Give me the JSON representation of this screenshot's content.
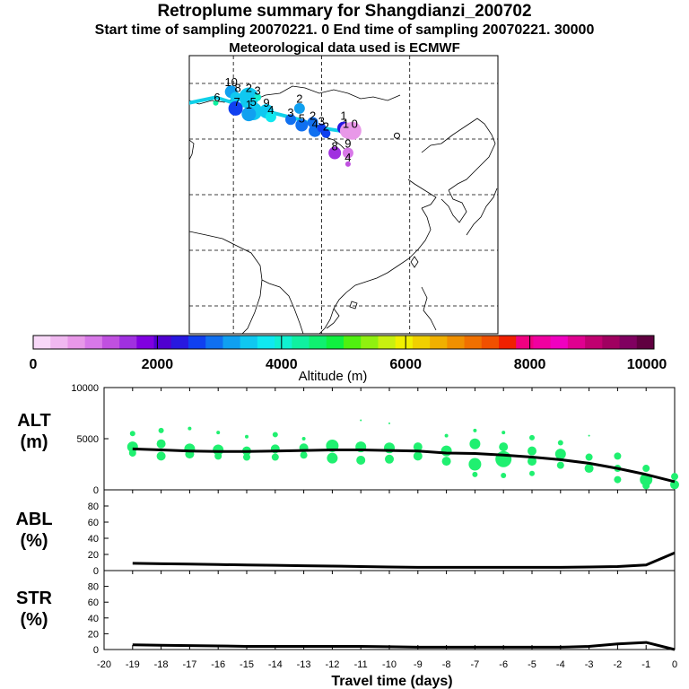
{
  "title": "Retroplume summary for Shangdianzi_200702",
  "subtitle": "Start time of sampling 20070221.    0     End time of sampling 20070221. 30000",
  "met_line": "Meteorological data used is ECMWF",
  "colorbar": {
    "label": "Altitude (m)",
    "ticks": [
      "0",
      "2000",
      "4000",
      "6000",
      "8000",
      "10000"
    ],
    "range": [
      0,
      10000
    ],
    "colors": [
      "#f8d8f8",
      "#f0b8f0",
      "#e898e8",
      "#d878e8",
      "#c050e0",
      "#a030e0",
      "#8000e0",
      "#5000d0",
      "#2818e0",
      "#1040f0",
      "#1070f0",
      "#10a0f0",
      "#10c8f0",
      "#10e8f0",
      "#10f0d0",
      "#10f0a0",
      "#10f070",
      "#10f040",
      "#50f010",
      "#90f010",
      "#c8f010",
      "#f0f000",
      "#f0d000",
      "#f0b000",
      "#f09000",
      "#f07000",
      "#f05000",
      "#f02000",
      "#f00080",
      "#f000a0",
      "#f000c0",
      "#e00090",
      "#c00070",
      "#a00060",
      "#800060",
      "#600040"
    ]
  },
  "map_labels": [
    {
      "text": "10",
      "lon": 79.5,
      "lat": 49.5
    },
    {
      "text": "8",
      "lon": 81.0,
      "lat": 48.5
    },
    {
      "text": "6",
      "lon": 76.3,
      "lat": 46.8
    },
    {
      "text": "7",
      "lon": 80.8,
      "lat": 46.0
    },
    {
      "text": "2",
      "lon": 83.5,
      "lat": 48.5
    },
    {
      "text": "3",
      "lon": 85.5,
      "lat": 48.0
    },
    {
      "text": "5",
      "lon": 84.5,
      "lat": 46.0
    },
    {
      "text": "1",
      "lon": 83.5,
      "lat": 45.5
    },
    {
      "text": "9",
      "lon": 87.5,
      "lat": 45.8
    },
    {
      "text": "4",
      "lon": 88.5,
      "lat": 44.5
    },
    {
      "text": "2",
      "lon": 95.0,
      "lat": 46.5
    },
    {
      "text": "3",
      "lon": 93.0,
      "lat": 44.0
    },
    {
      "text": "5",
      "lon": 95.5,
      "lat": 43.0
    },
    {
      "text": "4",
      "lon": 98.5,
      "lat": 42.0
    },
    {
      "text": "2",
      "lon": 98.0,
      "lat": 43.5
    },
    {
      "text": "3",
      "lon": 100.0,
      "lat": 42.5
    },
    {
      "text": "2",
      "lon": 101.0,
      "lat": 41.5
    },
    {
      "text": "1",
      "lon": 105.0,
      "lat": 43.5
    },
    {
      "text": "1",
      "lon": 105.5,
      "lat": 42.0
    },
    {
      "text": "0",
      "lon": 107.5,
      "lat": 42.0
    },
    {
      "text": "8",
      "lon": 103.0,
      "lat": 38.0
    },
    {
      "text": "9",
      "lon": 106.0,
      "lat": 38.5
    },
    {
      "text": "4",
      "lon": 106.0,
      "lat": 36.0
    }
  ],
  "chart_data": [
    {
      "type": "map-trajectory",
      "title": "Retroplume map",
      "lon_range": [
        70,
        140
      ],
      "lat_range": [
        5,
        55
      ],
      "grid_lon": [
        80,
        100,
        120
      ],
      "grid_lat": [
        10,
        20,
        30,
        40,
        50
      ],
      "station": {
        "lon": 117.1,
        "lat": 40.6
      },
      "clusters": [
        {
          "label": "10",
          "lon": 79.5,
          "lat": 48.5,
          "size": 7,
          "alt": 3300
        },
        {
          "label": "8",
          "lon": 80.5,
          "lat": 47.5,
          "size": 6,
          "alt": 3400
        },
        {
          "label": "6",
          "lon": 76.0,
          "lat": 46.5,
          "size": 3,
          "alt": 4400
        },
        {
          "label": "7",
          "lon": 80.5,
          "lat": 45.5,
          "size": 8,
          "alt": 2600
        },
        {
          "label": "2",
          "lon": 83.5,
          "lat": 47.5,
          "size": 11,
          "alt": 3600
        },
        {
          "label": "3",
          "lon": 85.5,
          "lat": 47.5,
          "size": 4,
          "alt": 3900
        },
        {
          "label": "5",
          "lon": 84.5,
          "lat": 45.0,
          "size": 10,
          "alt": 3400
        },
        {
          "label": "1",
          "lon": 83.5,
          "lat": 44.5,
          "size": 8,
          "alt": 3200
        },
        {
          "label": "9",
          "lon": 87.5,
          "lat": 45.0,
          "size": 8,
          "alt": 3500
        },
        {
          "label": "4",
          "lon": 88.5,
          "lat": 44.0,
          "size": 6,
          "alt": 3800
        },
        {
          "label": "2",
          "lon": 95.0,
          "lat": 45.5,
          "size": 6,
          "alt": 3200
        },
        {
          "label": "3",
          "lon": 93.0,
          "lat": 43.5,
          "size": 6,
          "alt": 3000
        },
        {
          "label": "5",
          "lon": 95.5,
          "lat": 42.5,
          "size": 7,
          "alt": 2900
        },
        {
          "label": "4",
          "lon": 98.5,
          "lat": 41.5,
          "size": 7,
          "alt": 2800
        },
        {
          "label": "2",
          "lon": 98.0,
          "lat": 43.0,
          "size": 6,
          "alt": 3000
        },
        {
          "label": "3",
          "lon": 100.0,
          "lat": 42.0,
          "size": 5,
          "alt": 2700
        },
        {
          "label": "2",
          "lon": 101.0,
          "lat": 41.0,
          "size": 5,
          "alt": 2500
        },
        {
          "label": "1",
          "lon": 105.0,
          "lat": 42.0,
          "size": 7,
          "alt": 2300
        },
        {
          "label": "1",
          "lon": 106.0,
          "lat": 41.5,
          "size": 9,
          "alt": 800
        },
        {
          "label": "0",
          "lon": 107.0,
          "lat": 41.5,
          "size": 10,
          "alt": 700
        },
        {
          "label": "8",
          "lon": 103.0,
          "lat": 37.5,
          "size": 7,
          "alt": 1400
        },
        {
          "label": "9",
          "lon": 106.0,
          "lat": 37.5,
          "size": 6,
          "alt": 900
        },
        {
          "label": "4",
          "lon": 106.0,
          "lat": 35.5,
          "size": 3,
          "alt": 1300
        }
      ],
      "track": [
        [
          70,
          46.5
        ],
        [
          76,
          47.5
        ],
        [
          80,
          46.5
        ],
        [
          85,
          45.5
        ],
        [
          90,
          44.5
        ],
        [
          95,
          43.5
        ],
        [
          100,
          42.0
        ],
        [
          104,
          41.5
        ],
        [
          108,
          41.5
        ]
      ]
    },
    {
      "type": "line+scatter",
      "title": "ALT (m)",
      "ylabel": "ALT\n(m)",
      "xlim": [
        -20,
        0
      ],
      "ylim": [
        0,
        10000
      ],
      "yticks": [
        0,
        5000,
        10000
      ],
      "x": [
        -19,
        -18,
        -17,
        -16,
        -15,
        -14,
        -13,
        -12,
        -11,
        -10,
        -9,
        -8,
        -7,
        -6,
        -5,
        -4,
        -3,
        -2,
        -1,
        0
      ],
      "mean": [
        4000,
        3900,
        3800,
        3750,
        3750,
        3800,
        3850,
        3900,
        3900,
        3850,
        3800,
        3600,
        3550,
        3400,
        3200,
        2950,
        2600,
        2100,
        1500,
        800
      ],
      "points": [
        {
          "x": -19,
          "y": 5500,
          "s": 3
        },
        {
          "x": -19,
          "y": 4200,
          "s": 6
        },
        {
          "x": -19,
          "y": 3600,
          "s": 4
        },
        {
          "x": -18,
          "y": 5800,
          "s": 3
        },
        {
          "x": -18,
          "y": 4500,
          "s": 5
        },
        {
          "x": -18,
          "y": 3300,
          "s": 5
        },
        {
          "x": -17,
          "y": 6000,
          "s": 2
        },
        {
          "x": -17,
          "y": 4000,
          "s": 6
        },
        {
          "x": -17,
          "y": 3500,
          "s": 5
        },
        {
          "x": -16,
          "y": 5600,
          "s": 2
        },
        {
          "x": -16,
          "y": 3900,
          "s": 6
        },
        {
          "x": -16,
          "y": 3300,
          "s": 4
        },
        {
          "x": -15,
          "y": 5200,
          "s": 2
        },
        {
          "x": -15,
          "y": 3800,
          "s": 5
        },
        {
          "x": -15,
          "y": 3200,
          "s": 4
        },
        {
          "x": -14,
          "y": 5400,
          "s": 3
        },
        {
          "x": -14,
          "y": 4000,
          "s": 5
        },
        {
          "x": -14,
          "y": 3200,
          "s": 4
        },
        {
          "x": -13,
          "y": 5000,
          "s": 2
        },
        {
          "x": -13,
          "y": 4100,
          "s": 5
        },
        {
          "x": -13,
          "y": 3400,
          "s": 4
        },
        {
          "x": -12,
          "y": 4300,
          "s": 7
        },
        {
          "x": -12,
          "y": 3100,
          "s": 6
        },
        {
          "x": -11,
          "y": 6800,
          "s": 1
        },
        {
          "x": -11,
          "y": 4200,
          "s": 6
        },
        {
          "x": -11,
          "y": 2900,
          "s": 5
        },
        {
          "x": -10,
          "y": 6500,
          "s": 1
        },
        {
          "x": -10,
          "y": 4100,
          "s": 6
        },
        {
          "x": -10,
          "y": 3000,
          "s": 5
        },
        {
          "x": -9,
          "y": 4200,
          "s": 5
        },
        {
          "x": -9,
          "y": 3300,
          "s": 5
        },
        {
          "x": -8,
          "y": 5300,
          "s": 2
        },
        {
          "x": -8,
          "y": 3800,
          "s": 6
        },
        {
          "x": -8,
          "y": 2800,
          "s": 5
        },
        {
          "x": -7,
          "y": 5800,
          "s": 2
        },
        {
          "x": -7,
          "y": 4500,
          "s": 6
        },
        {
          "x": -7,
          "y": 2500,
          "s": 7
        },
        {
          "x": -7,
          "y": 1500,
          "s": 3
        },
        {
          "x": -6,
          "y": 5600,
          "s": 2
        },
        {
          "x": -6,
          "y": 4200,
          "s": 5
        },
        {
          "x": -6,
          "y": 3000,
          "s": 9
        },
        {
          "x": -6,
          "y": 1400,
          "s": 3
        },
        {
          "x": -5,
          "y": 5100,
          "s": 3
        },
        {
          "x": -5,
          "y": 3800,
          "s": 5
        },
        {
          "x": -5,
          "y": 2800,
          "s": 5
        },
        {
          "x": -5,
          "y": 1600,
          "s": 3
        },
        {
          "x": -4,
          "y": 4600,
          "s": 3
        },
        {
          "x": -4,
          "y": 3500,
          "s": 6
        },
        {
          "x": -4,
          "y": 2400,
          "s": 4
        },
        {
          "x": -3,
          "y": 5300,
          "s": 1
        },
        {
          "x": -3,
          "y": 3200,
          "s": 4
        },
        {
          "x": -3,
          "y": 2100,
          "s": 5
        },
        {
          "x": -2,
          "y": 3300,
          "s": 4
        },
        {
          "x": -2,
          "y": 2100,
          "s": 4
        },
        {
          "x": -2,
          "y": 1000,
          "s": 4
        },
        {
          "x": -1,
          "y": 2100,
          "s": 4
        },
        {
          "x": -1,
          "y": 1000,
          "s": 7
        },
        {
          "x": -1,
          "y": 400,
          "s": 4
        },
        {
          "x": 0,
          "y": 1300,
          "s": 4
        },
        {
          "x": 0,
          "y": 500,
          "s": 5
        }
      ]
    },
    {
      "type": "line",
      "title": "ABL (%)",
      "ylabel": "ABL\n(%)",
      "xlim": [
        -20,
        0
      ],
      "ylim": [
        0,
        100
      ],
      "yticks": [
        0,
        20,
        40,
        60,
        80
      ],
      "x": [
        -19,
        -18,
        -17,
        -16,
        -15,
        -14,
        -13,
        -12,
        -11,
        -10,
        -9,
        -8,
        -7,
        -6,
        -5,
        -4,
        -3,
        -2,
        -1,
        0
      ],
      "values": [
        9,
        8.5,
        8,
        7.5,
        7,
        6.5,
        6,
        5.5,
        5,
        4.5,
        4,
        4,
        4,
        4,
        4,
        4,
        4.5,
        5,
        7,
        22
      ]
    },
    {
      "type": "line",
      "title": "STR (%)",
      "ylabel": "STR\n(%)",
      "xlim": [
        -20,
        0
      ],
      "ylim": [
        0,
        100
      ],
      "yticks": [
        0,
        20,
        40,
        60,
        80
      ],
      "x": [
        -19,
        -18,
        -17,
        -16,
        -15,
        -14,
        -13,
        -12,
        -11,
        -10,
        -9,
        -8,
        -7,
        -6,
        -5,
        -4,
        -3,
        -2,
        -1,
        0
      ],
      "values": [
        6,
        5.5,
        5,
        4.5,
        4,
        4,
        4,
        4,
        4,
        3.5,
        3,
        3,
        3,
        3,
        3,
        3,
        4,
        7,
        9,
        0
      ]
    }
  ],
  "x_axis": {
    "label": "Travel time (days)",
    "ticks": [
      "-20",
      "-19",
      "-18",
      "-17",
      "-16",
      "-15",
      "-14",
      "-13",
      "-12",
      "-11",
      "-10",
      "-9",
      "-8",
      "-7",
      "-6",
      "-5",
      "-4",
      "-3",
      "-2",
      "-1",
      "0"
    ]
  }
}
